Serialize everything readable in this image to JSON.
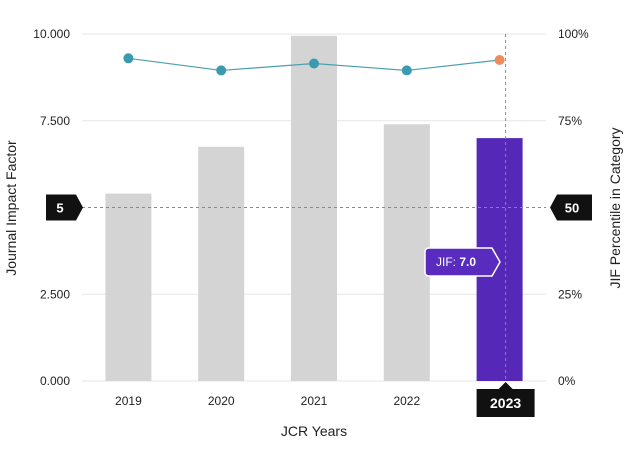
{
  "chart_data": {
    "type": "bar",
    "xlabel": "JCR Years",
    "ylabel": "Journal Impact Factor",
    "y2label": "JIF Percentile in Category",
    "categories": [
      "2019",
      "2020",
      "2021",
      "2022",
      "2023"
    ],
    "series": [
      {
        "kind": "bar",
        "axis": "left",
        "values": [
          5.4,
          6.75,
          9.95,
          7.4,
          7.0
        ]
      },
      {
        "kind": "line",
        "axis": "right",
        "values": [
          93,
          89.5,
          91.5,
          89.5,
          92.5
        ]
      }
    ],
    "ylim": [
      0,
      10
    ],
    "y_ticks": [
      0,
      2.5,
      5,
      7.5,
      10
    ],
    "y_tick_labels": [
      "0.000",
      "2.500",
      "5",
      "7.500",
      "10.000"
    ],
    "y2lim": [
      0,
      100
    ],
    "y2_ticks": [
      0,
      25,
      50,
      75,
      100
    ],
    "y2_tick_labels": [
      "0%",
      "25%",
      "50",
      "75%",
      "100%"
    ],
    "grid": "horizontal",
    "crosshair": {
      "y_value": 5,
      "y_badge": "5",
      "y2_badge": "50",
      "x_category": "2023",
      "x_badge": "2023"
    },
    "tooltip": {
      "label": "JIF:",
      "value": "7.0"
    },
    "colors": {
      "bar": "#d4d4d4",
      "bar_highlight": "#5528b8",
      "line": "#4a9fb0",
      "point": "#3a9bb0",
      "point_highlight": "#f08a5d",
      "badge": "#111111"
    }
  }
}
